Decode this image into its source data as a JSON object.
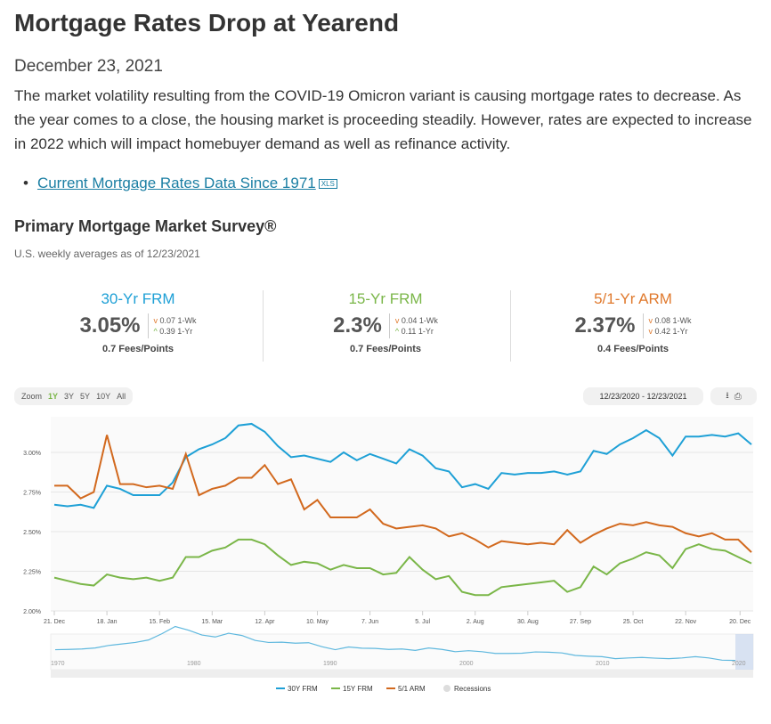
{
  "article": {
    "title": "Mortgage Rates Drop at Yearend",
    "date": "December 23, 2021",
    "intro": "The market volatility resulting from the COVID-19 Omicron variant is causing mortgage rates to decrease. As the year comes to a close, the housing market is proceeding steadily. However, rates are expected to increase in 2022 which will impact homebuyer demand as well as refinance activity.",
    "link_label": "Current Mortgage Rates Data Since 1971",
    "link_badge": "XLS"
  },
  "survey": {
    "title": "Primary Mortgage Market Survey®",
    "subtitle": "U.S. weekly averages as of 12/23/2021",
    "cards": [
      {
        "label": "30-Yr FRM",
        "rate": "3.05%",
        "wk": "0.07 1-Wk",
        "yr": "0.39 1-Yr",
        "wk_dir": "down",
        "yr_dir": "up",
        "fees": "0.7 Fees/Points",
        "color": "#1ea0d6"
      },
      {
        "label": "15-Yr FRM",
        "rate": "2.3%",
        "wk": "0.04 1-Wk",
        "yr": "0.11 1-Yr",
        "wk_dir": "down",
        "yr_dir": "up",
        "fees": "0.7 Fees/Points",
        "color": "#7ab648"
      },
      {
        "label": "5/1-Yr ARM",
        "rate": "2.37%",
        "wk": "0.08 1-Wk",
        "yr": "0.42 1-Yr",
        "wk_dir": "down",
        "yr_dir": "down",
        "fees": "0.4 Fees/Points",
        "color": "#e07a2e"
      }
    ]
  },
  "controls": {
    "zoom_label": "Zoom",
    "zoom_options": [
      "1Y",
      "3Y",
      "5Y",
      "10Y",
      "All"
    ],
    "active": "1Y",
    "range": "12/23/2020 - 12/23/2021",
    "download_icon": "⭳",
    "print_icon": "⎙"
  },
  "chart_data": {
    "type": "line",
    "ylim": [
      2.0,
      3.2
    ],
    "yticks": [
      "2.00%",
      "2.25%",
      "2.50%",
      "2.75%",
      "3.00%"
    ],
    "yvals": [
      2.0,
      2.25,
      2.5,
      2.75,
      3.0
    ],
    "xticks": [
      "21. Dec",
      "18. Jan",
      "15. Feb",
      "15. Mar",
      "12. Apr",
      "10. May",
      "7. Jun",
      "5. Jul",
      "2. Aug",
      "30. Aug",
      "27. Sep",
      "25. Oct",
      "22. Nov",
      "20. Dec"
    ],
    "series": [
      {
        "name": "30Y FRM",
        "color": "#1ea0d6",
        "values": [
          2.67,
          2.66,
          2.67,
          2.65,
          2.79,
          2.77,
          2.73,
          2.73,
          2.73,
          2.81,
          2.97,
          3.02,
          3.05,
          3.09,
          3.17,
          3.18,
          3.13,
          3.04,
          2.97,
          2.98,
          2.96,
          2.94,
          3.0,
          2.95,
          2.99,
          2.96,
          2.93,
          3.02,
          2.98,
          2.9,
          2.88,
          2.78,
          2.8,
          2.77,
          2.87,
          2.86,
          2.87,
          2.87,
          2.88,
          2.86,
          2.88,
          3.01,
          2.99,
          3.05,
          3.09,
          3.14,
          3.09,
          2.98,
          3.1,
          3.1,
          3.11,
          3.1,
          3.12,
          3.05
        ]
      },
      {
        "name": "15Y FRM",
        "color": "#7ab648",
        "values": [
          2.21,
          2.19,
          2.17,
          2.16,
          2.23,
          2.21,
          2.2,
          2.21,
          2.19,
          2.21,
          2.34,
          2.34,
          2.38,
          2.4,
          2.45,
          2.45,
          2.42,
          2.35,
          2.29,
          2.31,
          2.3,
          2.26,
          2.29,
          2.27,
          2.27,
          2.23,
          2.24,
          2.34,
          2.26,
          2.2,
          2.22,
          2.12,
          2.1,
          2.1,
          2.15,
          2.16,
          2.17,
          2.18,
          2.19,
          2.12,
          2.15,
          2.28,
          2.23,
          2.3,
          2.33,
          2.37,
          2.35,
          2.27,
          2.39,
          2.42,
          2.39,
          2.38,
          2.34,
          2.3
        ]
      },
      {
        "name": "5/1 ARM",
        "color": "#d2691e",
        "values": [
          2.79,
          2.79,
          2.71,
          2.75,
          3.11,
          2.8,
          2.8,
          2.78,
          2.79,
          2.77,
          2.99,
          2.73,
          2.77,
          2.79,
          2.84,
          2.84,
          2.92,
          2.8,
          2.83,
          2.64,
          2.7,
          2.59,
          2.59,
          2.59,
          2.64,
          2.55,
          2.52,
          2.53,
          2.54,
          2.52,
          2.47,
          2.49,
          2.45,
          2.4,
          2.44,
          2.43,
          2.42,
          2.43,
          2.42,
          2.51,
          2.43,
          2.48,
          2.52,
          2.55,
          2.54,
          2.56,
          2.54,
          2.53,
          2.49,
          2.47,
          2.49,
          2.45,
          2.45,
          2.37
        ]
      }
    ],
    "navigator_years": [
      "1970",
      "1980",
      "1990",
      "2000",
      "2010",
      "2020"
    ],
    "legend": [
      "30Y FRM",
      "15Y FRM",
      "5/1 ARM",
      "Recessions"
    ]
  }
}
